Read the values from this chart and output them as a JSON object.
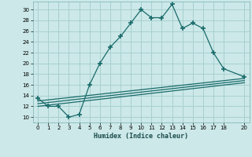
{
  "xlabel": "Humidex (Indice chaleur)",
  "bg_color": "#cce8e8",
  "grid_color": "#a8d0d0",
  "line_color": "#1a6b6b",
  "xlim": [
    -0.5,
    20.5
  ],
  "ylim": [
    9,
    31.5
  ],
  "xticks": [
    0,
    1,
    2,
    3,
    4,
    5,
    6,
    7,
    8,
    9,
    10,
    11,
    12,
    13,
    14,
    15,
    16,
    17,
    18,
    20
  ],
  "yticks": [
    10,
    12,
    14,
    16,
    18,
    20,
    22,
    24,
    26,
    28,
    30
  ],
  "main_x": [
    0,
    1,
    2,
    3,
    4,
    5,
    6,
    7,
    8,
    9,
    10,
    11,
    12,
    13,
    14,
    15,
    16,
    17,
    18,
    20
  ],
  "main_y": [
    13.5,
    12,
    12,
    10,
    10.5,
    16,
    20,
    23,
    25,
    27.5,
    30,
    28.5,
    28.5,
    31,
    26.5,
    27.5,
    26.5,
    22,
    19,
    17.5
  ],
  "line2_x": [
    0,
    20
  ],
  "line2_y": [
    13.0,
    17.2
  ],
  "line3_x": [
    0,
    20
  ],
  "line3_y": [
    12.5,
    16.8
  ],
  "line4_x": [
    0,
    20
  ],
  "line4_y": [
    12.0,
    16.4
  ]
}
